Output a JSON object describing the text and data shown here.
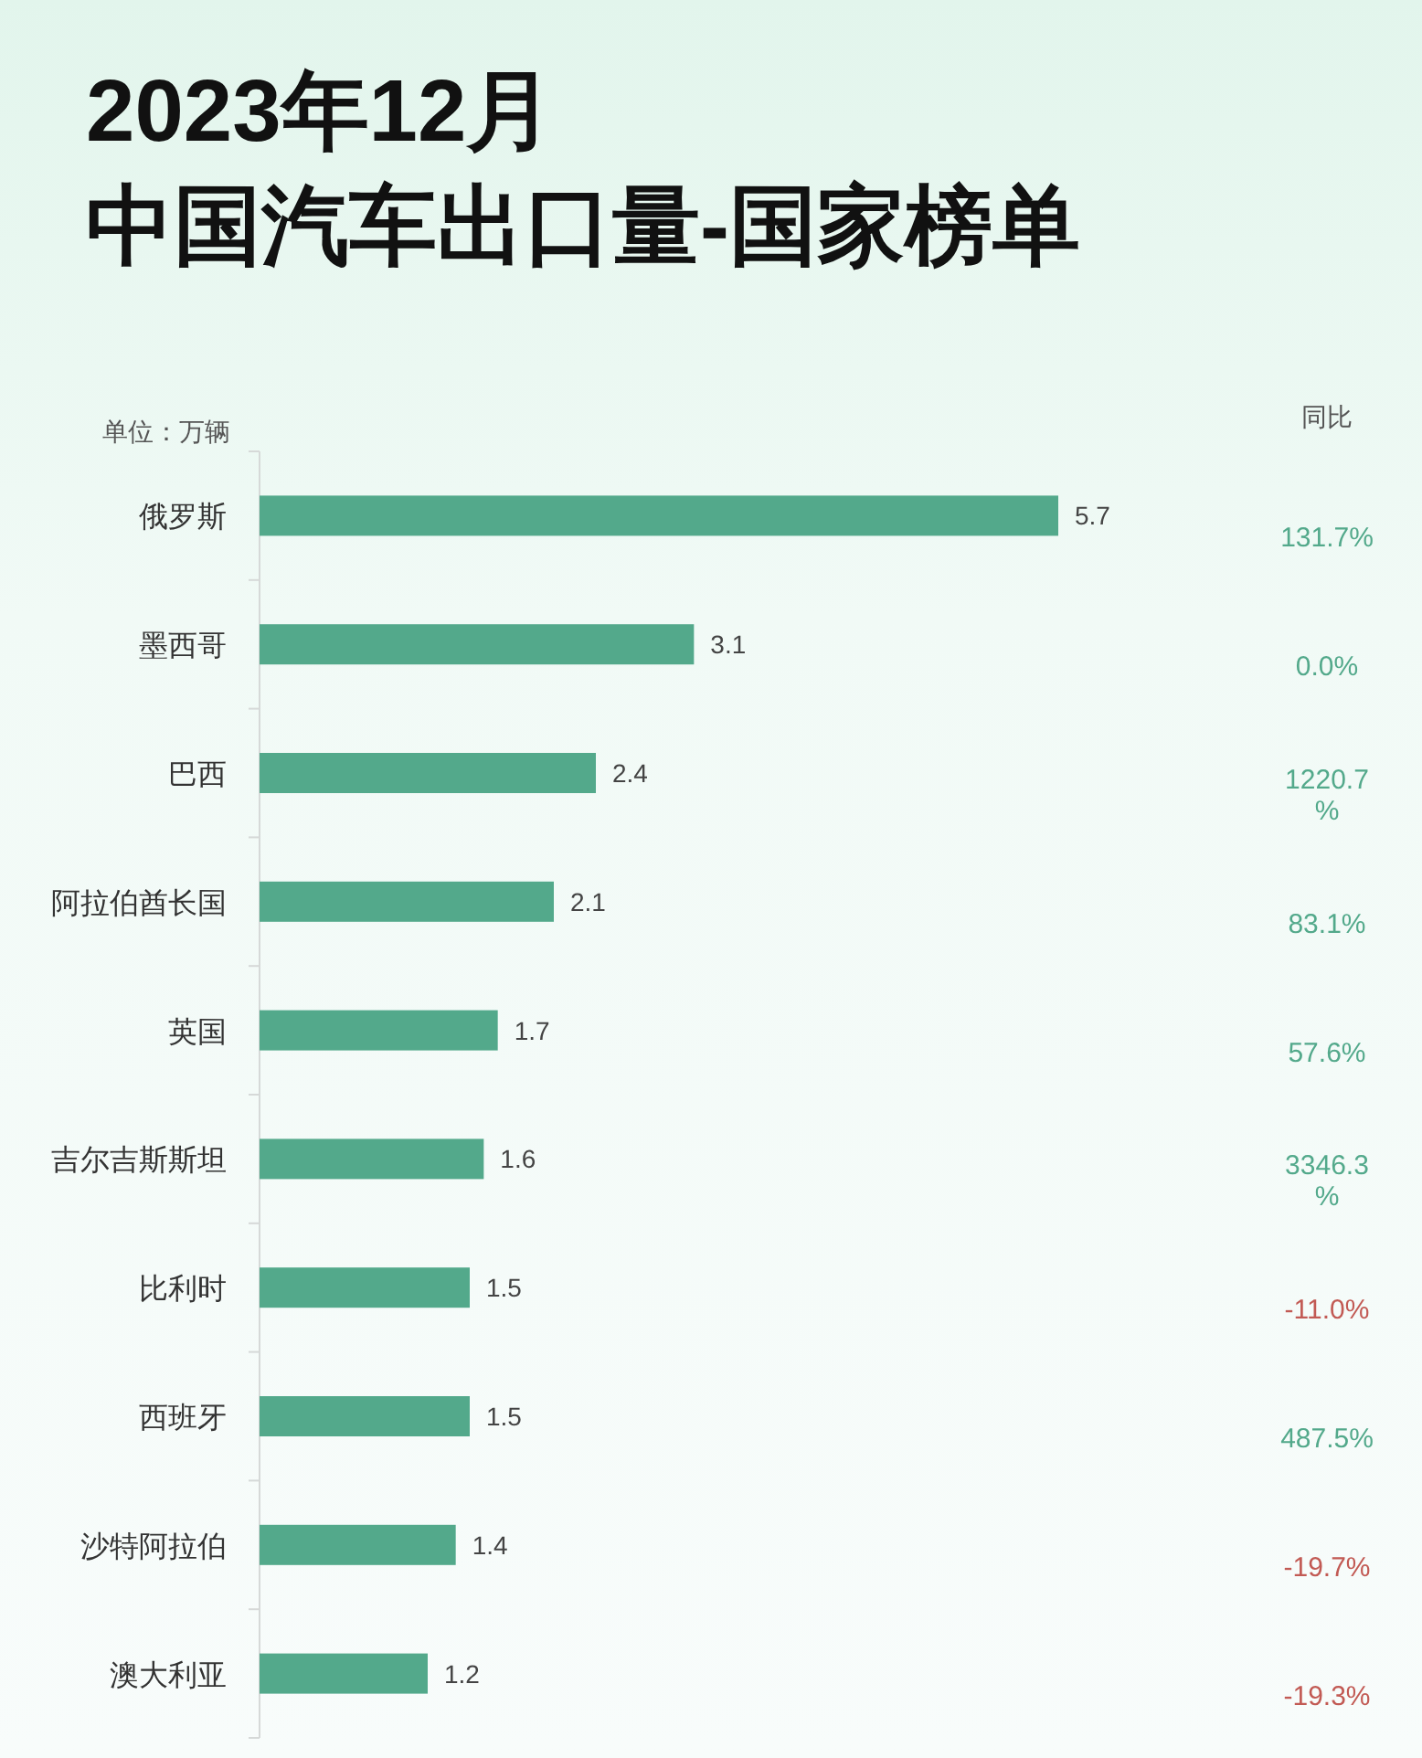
{
  "chart_data": [
    {
      "type": "bar",
      "orientation": "horizontal",
      "title": "2023年12月",
      "subtitle": "中国汽车出口量-国家榜单",
      "xlabel": "单位：万辆",
      "categories": [
        "俄罗斯",
        "墨西哥",
        "巴西",
        "阿拉伯酋长国",
        "英国",
        "吉尔吉斯斯坦",
        "比利时",
        "西班牙",
        "沙特阿拉伯",
        "澳大利亚"
      ],
      "values": [
        5.7,
        3.1,
        2.4,
        2.1,
        1.7,
        1.6,
        1.5,
        1.5,
        1.4,
        1.2
      ],
      "color": "#53a98b",
      "data_labels": true
    },
    {
      "type": "other",
      "title": "同比",
      "categories": [
        null,
        null,
        null,
        null,
        null,
        null,
        null,
        null,
        null,
        null
      ],
      "values": [
        131.7,
        0.0,
        1220.7,
        83.1,
        57.6,
        3346.3,
        -11.0,
        487.5,
        -19.7,
        -19.3
      ],
      "value_labels": [
        "131.7%",
        "0.0%",
        "1220.7%",
        "83.1%",
        "57.6%",
        "3346.3%",
        "-11.0%",
        "487.5%",
        "-19.7%",
        "-19.3%"
      ],
      "colors": [
        "#53a98b",
        "#53a98b",
        "#53a98b",
        "#53a98b",
        "#53a98b",
        "#53a98b",
        "#c25a54",
        "#53a98b",
        "#c25a54",
        "#c25a54"
      ]
    }
  ]
}
